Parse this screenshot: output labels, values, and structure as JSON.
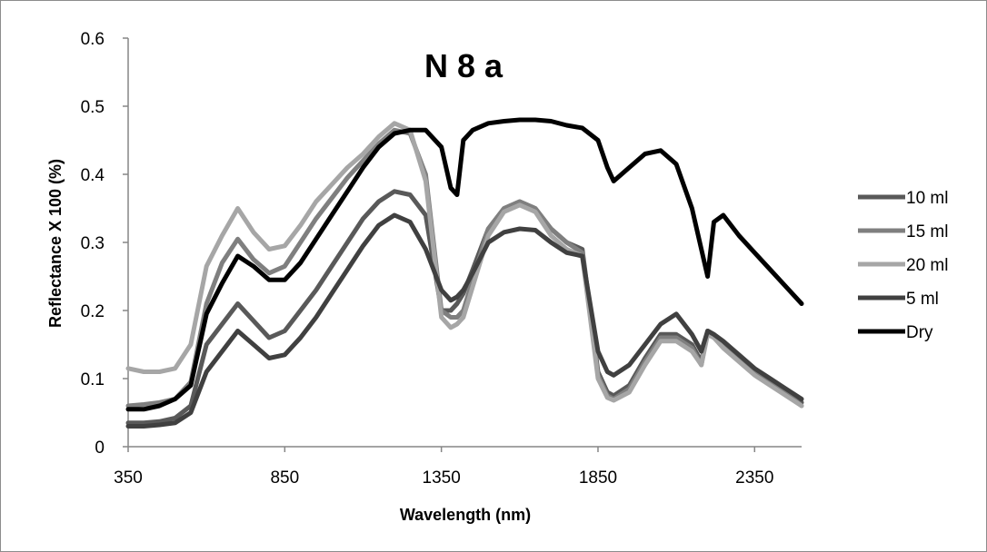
{
  "chart_data": {
    "type": "line",
    "title": "N 8 a",
    "xlabel": "Wavelength (nm)",
    "ylabel": "Reflectance X 100 (%)",
    "xlim": [
      350,
      2500
    ],
    "ylim": [
      0,
      0.6
    ],
    "x_ticks": [
      350,
      850,
      1350,
      1850,
      2350
    ],
    "x_tick_labels": [
      "350",
      "850",
      "1350",
      "1850",
      "2350"
    ],
    "y_ticks": [
      0,
      0.1,
      0.2,
      0.3,
      0.4,
      0.5,
      0.6
    ],
    "y_tick_labels": [
      "0",
      "0.1",
      "0.2",
      "0.3",
      "0.4",
      "0.5",
      "0.6"
    ],
    "grid": false,
    "legend_position": "right",
    "x": [
      350,
      400,
      450,
      500,
      550,
      600,
      650,
      700,
      750,
      800,
      850,
      900,
      950,
      1000,
      1050,
      1100,
      1150,
      1200,
      1250,
      1300,
      1350,
      1380,
      1400,
      1420,
      1450,
      1500,
      1550,
      1600,
      1650,
      1700,
      1750,
      1800,
      1850,
      1880,
      1900,
      1950,
      2000,
      2050,
      2100,
      2150,
      2180,
      2200,
      2220,
      2250,
      2300,
      2350,
      2400,
      2450,
      2500
    ],
    "series": [
      {
        "name": "10 ml",
        "color": "#595959",
        "width": 5,
        "values": [
          0.035,
          0.035,
          0.037,
          0.042,
          0.06,
          0.15,
          0.18,
          0.21,
          0.185,
          0.16,
          0.17,
          0.2,
          0.23,
          0.265,
          0.3,
          0.335,
          0.36,
          0.375,
          0.37,
          0.34,
          0.2,
          0.2,
          0.21,
          0.225,
          0.26,
          0.32,
          0.35,
          0.36,
          0.35,
          0.32,
          0.3,
          0.29,
          0.11,
          0.08,
          0.075,
          0.09,
          0.13,
          0.165,
          0.165,
          0.15,
          0.125,
          0.17,
          0.165,
          0.15,
          0.13,
          0.11,
          0.095,
          0.08,
          0.065
        ]
      },
      {
        "name": "15 ml",
        "color": "#7f7f7f",
        "width": 5,
        "values": [
          0.06,
          0.062,
          0.065,
          0.07,
          0.095,
          0.21,
          0.27,
          0.305,
          0.275,
          0.255,
          0.265,
          0.3,
          0.335,
          0.365,
          0.395,
          0.42,
          0.445,
          0.465,
          0.46,
          0.4,
          0.2,
          0.19,
          0.19,
          0.2,
          0.245,
          0.32,
          0.35,
          0.36,
          0.35,
          0.32,
          0.3,
          0.285,
          0.105,
          0.075,
          0.07,
          0.085,
          0.125,
          0.16,
          0.16,
          0.145,
          0.12,
          0.17,
          0.165,
          0.15,
          0.13,
          0.11,
          0.095,
          0.08,
          0.06
        ]
      },
      {
        "name": "20 ml",
        "color": "#a6a6a6",
        "width": 5,
        "values": [
          0.115,
          0.11,
          0.11,
          0.115,
          0.15,
          0.265,
          0.31,
          0.35,
          0.315,
          0.29,
          0.295,
          0.325,
          0.36,
          0.385,
          0.41,
          0.43,
          0.455,
          0.475,
          0.465,
          0.39,
          0.19,
          0.175,
          0.18,
          0.19,
          0.235,
          0.31,
          0.345,
          0.355,
          0.345,
          0.31,
          0.29,
          0.28,
          0.1,
          0.072,
          0.068,
          0.08,
          0.12,
          0.155,
          0.155,
          0.14,
          0.12,
          0.165,
          0.16,
          0.145,
          0.125,
          0.105,
          0.09,
          0.075,
          0.06
        ]
      },
      {
        "name": "5 ml",
        "color": "#404040",
        "width": 5,
        "values": [
          0.03,
          0.03,
          0.032,
          0.035,
          0.05,
          0.11,
          0.14,
          0.17,
          0.15,
          0.13,
          0.135,
          0.16,
          0.19,
          0.225,
          0.26,
          0.295,
          0.325,
          0.34,
          0.33,
          0.29,
          0.23,
          0.215,
          0.22,
          0.23,
          0.255,
          0.3,
          0.315,
          0.32,
          0.318,
          0.3,
          0.285,
          0.28,
          0.14,
          0.11,
          0.105,
          0.12,
          0.15,
          0.18,
          0.195,
          0.165,
          0.14,
          0.17,
          0.165,
          0.155,
          0.135,
          0.115,
          0.1,
          0.085,
          0.07
        ]
      },
      {
        "name": "Dry",
        "color": "#000000",
        "width": 5,
        "values": [
          0.055,
          0.055,
          0.06,
          0.07,
          0.09,
          0.195,
          0.24,
          0.28,
          0.265,
          0.245,
          0.245,
          0.27,
          0.305,
          0.34,
          0.375,
          0.41,
          0.44,
          0.46,
          0.465,
          0.465,
          0.44,
          0.38,
          0.37,
          0.45,
          0.465,
          0.475,
          0.478,
          0.48,
          0.48,
          0.478,
          0.472,
          0.468,
          0.45,
          0.41,
          0.39,
          0.41,
          0.43,
          0.435,
          0.415,
          0.35,
          0.29,
          0.25,
          0.33,
          0.34,
          0.31,
          0.285,
          0.26,
          0.235,
          0.21
        ]
      }
    ]
  }
}
